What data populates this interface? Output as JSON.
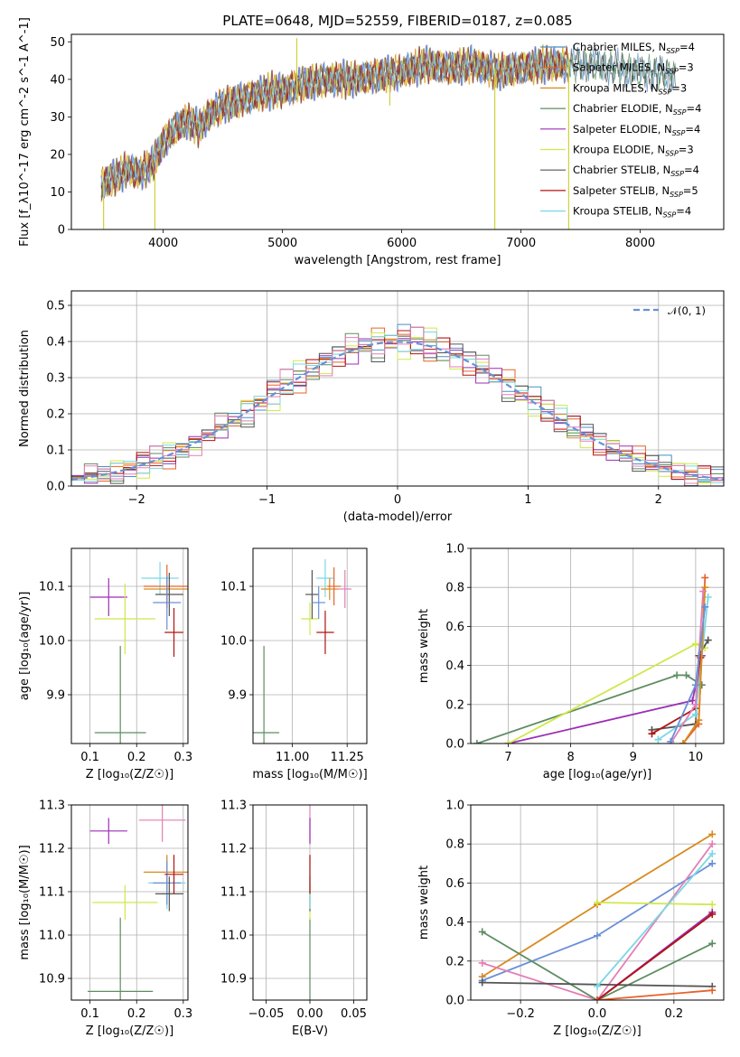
{
  "figure": {
    "title": "PLATE=0648, MJD=52559, FIBERID=0187, z=0.085"
  },
  "colors": {
    "Chabrier MILES": "#4a8fc4",
    "Salpeter MILES": "#e6632a",
    "Kroupa MILES": "#d98a1e",
    "Chabrier ELODIE": "#5e8d62",
    "Salpeter ELODIE": "#9b2fb5",
    "Kroupa ELODIE": "#d0e84a",
    "Chabrier STELIB": "#555555",
    "Salpeter STELIB": "#b0140f",
    "Kroupa STELIB": "#7ad8e6",
    "pink": "#e47fb5",
    "blue": "#6a8fd8",
    "normal": "#6a8fd8"
  },
  "chart_data": [
    {
      "id": "spectrum",
      "type": "line",
      "xlabel": "wavelength [Angstrom, rest frame]",
      "ylabel": "Flux [f_λ10^-17 erg cm^-2 s^-1 A^-1]",
      "xlim": [
        3230,
        8700
      ],
      "ylim": [
        0,
        52
      ],
      "xticks": [
        4000,
        5000,
        6000,
        7000,
        8000
      ],
      "yticks": [
        0,
        10,
        20,
        30,
        40,
        50
      ],
      "grid": false,
      "legend_position": "right",
      "legend": [
        {
          "name": "Chabrier MILES",
          "nssp": "4"
        },
        {
          "name": "Salpeter MILES",
          "nssp": "3"
        },
        {
          "name": "Kroupa MILES",
          "nssp": "3"
        },
        {
          "name": "Chabrier ELODIE",
          "nssp": "4"
        },
        {
          "name": "Salpeter ELODIE",
          "nssp": "4"
        },
        {
          "name": "Kroupa ELODIE",
          "nssp": "3"
        },
        {
          "name": "Chabrier STELIB",
          "nssp": "4"
        },
        {
          "name": "Salpeter STELIB",
          "nssp": "5"
        },
        {
          "name": "Kroupa STELIB",
          "nssp": "4"
        }
      ],
      "continuum": {
        "x": [
          3480,
          3600,
          3700,
          3800,
          3900,
          4000,
          4100,
          4200,
          4300,
          4400,
          4500,
          4600,
          4700,
          4800,
          4900,
          5000,
          5200,
          5400,
          5600,
          5800,
          6000,
          6200,
          6400,
          6600,
          6800,
          7000,
          7200,
          7400,
          7600,
          7800,
          8000,
          8300
        ],
        "y": [
          12,
          14,
          16,
          15,
          17,
          23,
          27,
          29,
          27,
          31,
          33,
          34,
          35,
          36,
          37,
          37,
          39,
          40,
          40,
          41,
          42,
          44,
          43,
          44,
          42,
          43,
          44,
          44,
          44,
          43,
          42,
          41
        ]
      },
      "spikes": [
        {
          "x": 3500,
          "ybottom": 0,
          "ytop": 13
        },
        {
          "x": 3930,
          "ybottom": 0,
          "ytop": 15
        },
        {
          "x": 5120,
          "ybottom": 35,
          "ytop": 51
        },
        {
          "x": 5900,
          "ybottom": 33,
          "ytop": 40
        },
        {
          "x": 6780,
          "ybottom": 0,
          "ytop": 43
        },
        {
          "x": 7400,
          "ybottom": 0,
          "ytop": 46
        }
      ]
    },
    {
      "id": "residuals",
      "type": "histogram",
      "xlabel": "(data-model)/error",
      "ylabel": "Normed distribution",
      "xlim": [
        -2.5,
        2.5
      ],
      "ylim": [
        0,
        0.54
      ],
      "xticks": [
        -2,
        -1,
        0,
        1,
        2
      ],
      "xticklabels": [
        "−2",
        "−1",
        "0",
        "1",
        "2"
      ],
      "yticks": [
        0.0,
        0.1,
        0.2,
        0.3,
        0.4,
        0.5
      ],
      "yticklabels": [
        "0.0",
        "0.1",
        "0.2",
        "0.3",
        "0.4",
        "0.5"
      ],
      "grid": true,
      "legend_position": "top-right",
      "legend_label": "𝒩(0, 1)",
      "bin_width": 0.1,
      "bin_start": -2.5,
      "base_series": "normal approximation",
      "series_colors": [
        "Chabrier MILES",
        "Salpeter MILES",
        "Kroupa MILES",
        "Chabrier ELODIE",
        "Salpeter ELODIE",
        "Kroupa ELODIE",
        "Chabrier STELIB",
        "Salpeter STELIB",
        "Kroupa STELIB",
        "pink"
      ],
      "perturbation": [
        [
          0.01,
          -0.02,
          0.03,
          0.0,
          -0.01,
          0.02,
          0.01,
          -0.03,
          0.02,
          0.0
        ],
        [
          -0.02,
          0.01,
          0.0,
          0.03,
          -0.02,
          0.01,
          -0.01,
          0.02,
          0.0,
          0.02
        ],
        [
          0.02,
          0.0,
          -0.02,
          0.01,
          0.03,
          -0.02,
          0.0,
          0.01,
          -0.03,
          0.01
        ],
        [
          0.0,
          0.03,
          0.01,
          -0.02,
          0.0,
          0.02,
          -0.03,
          0.0,
          0.01,
          -0.01
        ],
        [
          -0.01,
          -0.01,
          0.02,
          0.02,
          -0.03,
          0.0,
          0.02,
          -0.02,
          0.03,
          0.0
        ],
        [
          0.03,
          0.02,
          -0.01,
          -0.01,
          0.01,
          -0.03,
          0.0,
          0.03,
          -0.01,
          -0.02
        ],
        [
          -0.03,
          0.0,
          0.01,
          0.0,
          0.02,
          0.01,
          0.03,
          -0.01,
          -0.02,
          0.03
        ],
        [
          0.01,
          -0.03,
          0.0,
          0.02,
          -0.01,
          0.03,
          -0.02,
          0.0,
          0.02,
          -0.01
        ],
        [
          0.0,
          0.01,
          -0.03,
          -0.01,
          0.02,
          -0.01,
          0.01,
          0.02,
          0.0,
          0.02
        ],
        [
          0.02,
          -0.01,
          0.02,
          0.0,
          0.0,
          -0.02,
          0.03,
          -0.01,
          0.01,
          -0.03
        ]
      ]
    },
    {
      "id": "age_vs_Z",
      "type": "scatter-errorbar",
      "xlabel": "Z [log₁₀(Z/Z☉)]",
      "ylabel": "age  [log₁₀(age/yr)]",
      "xlim": [
        0.06,
        0.31
      ],
      "ylim": [
        9.81,
        10.17
      ],
      "xticks": [
        0.1,
        0.2,
        0.3
      ],
      "xticklabels": [
        "0.1",
        "0.2",
        "0.3"
      ],
      "yticks": [
        9.9,
        10.0,
        10.1
      ],
      "yticklabels": [
        "9.9",
        "10.0",
        "10.1"
      ],
      "grid": true,
      "points": [
        {
          "c": "Chabrier ELODIE",
          "x": 0.165,
          "xerr": 0.055,
          "y": 9.83,
          "yerr": 0.16
        },
        {
          "c": "Salpeter ELODIE",
          "x": 0.14,
          "xerr": 0.04,
          "y": 10.08,
          "yerr": 0.035
        },
        {
          "c": "Kroupa ELODIE",
          "x": 0.175,
          "xerr": 0.065,
          "y": 10.04,
          "yerr": 0.065
        },
        {
          "c": "Kroupa STELIB",
          "x": 0.25,
          "xerr": 0.04,
          "y": 10.115,
          "yerr": 0.03
        },
        {
          "c": "Salpeter MILES",
          "x": 0.265,
          "xerr": 0.05,
          "y": 10.1,
          "yerr": 0.04
        },
        {
          "c": "Kroupa MILES",
          "x": 0.265,
          "xerr": 0.05,
          "y": 10.095,
          "yerr": 0.02
        },
        {
          "c": "Chabrier STELIB",
          "x": 0.27,
          "xerr": 0.03,
          "y": 10.085,
          "yerr": 0.04
        },
        {
          "c": "blue",
          "x": 0.265,
          "xerr": 0.03,
          "y": 10.07,
          "yerr": 0.05
        },
        {
          "c": "Salpeter STELIB",
          "x": 0.28,
          "xerr": 0.02,
          "y": 10.015,
          "yerr": 0.045
        }
      ]
    },
    {
      "id": "age_vs_mass",
      "type": "scatter-errorbar",
      "xlabel": "mass [log₁₀(M/M☉)]",
      "ylabel": "",
      "xlim": [
        10.82,
        11.34
      ],
      "ylim": [
        9.81,
        10.17
      ],
      "xticks": [
        11.0,
        11.25
      ],
      "xticklabels": [
        "11.00",
        "11.25"
      ],
      "yticks": [
        9.9,
        10.0,
        10.1
      ],
      "yticklabels": [
        "9.9",
        "10.0",
        "10.1"
      ],
      "grid": true,
      "points": [
        {
          "c": "Chabrier ELODIE",
          "x": 10.87,
          "xerr": 0.07,
          "y": 9.83,
          "yerr": 0.16
        },
        {
          "c": "Kroupa ELODIE",
          "x": 11.08,
          "xerr": 0.04,
          "y": 10.04,
          "yerr": 0.03
        },
        {
          "c": "Salpeter STELIB",
          "x": 11.15,
          "xerr": 0.04,
          "y": 10.015,
          "yerr": 0.04
        },
        {
          "c": "Chabrier STELIB",
          "x": 11.09,
          "xerr": 0.03,
          "y": 10.085,
          "yerr": 0.045
        },
        {
          "c": "blue",
          "x": 11.12,
          "xerr": 0.03,
          "y": 10.07,
          "yerr": 0.03
        },
        {
          "c": "Kroupa STELIB",
          "x": 11.15,
          "xerr": 0.04,
          "y": 10.115,
          "yerr": 0.035
        },
        {
          "c": "Kroupa MILES",
          "x": 11.17,
          "xerr": 0.04,
          "y": 10.095,
          "yerr": 0.02
        },
        {
          "c": "Salpeter MILES",
          "x": 11.19,
          "xerr": 0.03,
          "y": 10.1,
          "yerr": 0.035
        },
        {
          "c": "pink",
          "x": 11.24,
          "xerr": 0.03,
          "y": 10.095,
          "yerr": 0.035
        }
      ]
    },
    {
      "id": "massweight_vs_age",
      "type": "line",
      "xlabel": "age  [log₁₀(age/yr)]",
      "ylabel": "mass weight",
      "xlim": [
        6.4,
        10.45
      ],
      "ylim": [
        0,
        1.0
      ],
      "xticks": [
        7,
        8,
        9,
        10
      ],
      "xticklabels": [
        "7",
        "8",
        "9",
        "10"
      ],
      "yticks": [
        0.0,
        0.2,
        0.4,
        0.6,
        0.8,
        1.0
      ],
      "yticklabels": [
        "0.0",
        "0.2",
        "0.4",
        "0.6",
        "0.8",
        "1.0"
      ],
      "grid": true,
      "series": [
        {
          "c": "Chabrier ELODIE",
          "x": [
            6.5,
            9.7,
            9.85,
            10.1
          ],
          "y": [
            0.0,
            0.35,
            0.35,
            0.3
          ]
        },
        {
          "c": "Salpeter ELODIE",
          "x": [
            7.0,
            9.95,
            10.1
          ],
          "y": [
            0.0,
            0.22,
            0.45
          ]
        },
        {
          "c": "Kroupa ELODIE",
          "x": [
            7.0,
            10.0,
            10.15
          ],
          "y": [
            0.0,
            0.51,
            0.49
          ]
        },
        {
          "c": "Chabrier STELIB",
          "x": [
            9.3,
            10.0,
            10.05,
            10.2
          ],
          "y": [
            0.07,
            0.1,
            0.45,
            0.53
          ]
        },
        {
          "c": "Salpeter STELIB",
          "x": [
            9.3,
            10.0,
            10.08
          ],
          "y": [
            0.05,
            0.18,
            0.44
          ]
        },
        {
          "c": "Kroupa STELIB",
          "x": [
            9.4,
            10.0,
            10.2
          ],
          "y": [
            0.02,
            0.15,
            0.75
          ]
        },
        {
          "c": "Salpeter MILES",
          "x": [
            9.8,
            10.05,
            10.15
          ],
          "y": [
            0.0,
            0.1,
            0.85
          ]
        },
        {
          "c": "Kroupa MILES",
          "x": [
            9.8,
            10.05,
            10.15
          ],
          "y": [
            0.0,
            0.12,
            0.8
          ]
        },
        {
          "c": "pink",
          "x": [
            9.6,
            10.0,
            10.12
          ],
          "y": [
            0.0,
            0.2,
            0.78
          ]
        },
        {
          "c": "blue",
          "x": [
            9.6,
            10.0,
            10.15
          ],
          "y": [
            0.01,
            0.3,
            0.7
          ]
        }
      ]
    },
    {
      "id": "mass_vs_Z",
      "type": "scatter-errorbar",
      "xlabel": "Z [log₁₀(Z/Z☉)]",
      "ylabel": "mass [log₁₀(M/M☉)]",
      "xlim": [
        0.06,
        0.31
      ],
      "ylim": [
        10.85,
        11.3
      ],
      "xticks": [
        0.1,
        0.2,
        0.3
      ],
      "xticklabels": [
        "0.1",
        "0.2",
        "0.3"
      ],
      "yticks": [
        10.9,
        11.0,
        11.1,
        11.2,
        11.3
      ],
      "yticklabels": [
        "10.9",
        "11.0",
        "11.1",
        "11.2",
        "11.3"
      ],
      "grid": true,
      "points": [
        {
          "c": "Chabrier ELODIE",
          "x": 0.165,
          "xerr": 0.07,
          "y": 10.87,
          "yerr": 0.17
        },
        {
          "c": "Kroupa ELODIE",
          "x": 0.175,
          "xerr": 0.07,
          "y": 11.075,
          "yerr": 0.04
        },
        {
          "c": "Salpeter ELODIE",
          "x": 0.14,
          "xerr": 0.04,
          "y": 11.24,
          "yerr": 0.03
        },
        {
          "c": "pink",
          "x": 0.255,
          "xerr": 0.05,
          "y": 11.265,
          "yerr": 0.05
        },
        {
          "c": "Kroupa STELIB",
          "x": 0.265,
          "xerr": 0.04,
          "y": 11.12,
          "yerr": 0.06
        },
        {
          "c": "Kroupa MILES",
          "x": 0.265,
          "xerr": 0.05,
          "y": 11.145,
          "yerr": 0.04
        },
        {
          "c": "blue",
          "x": 0.265,
          "xerr": 0.03,
          "y": 11.12,
          "yerr": 0.05
        },
        {
          "c": "Chabrier STELIB",
          "x": 0.27,
          "xerr": 0.03,
          "y": 11.095,
          "yerr": 0.04
        },
        {
          "c": "Salpeter STELIB",
          "x": 0.28,
          "xerr": 0.02,
          "y": 11.14,
          "yerr": 0.045
        }
      ]
    },
    {
      "id": "mass_vs_ebv",
      "type": "scatter-errorbar",
      "xlabel": "E(B-V)",
      "ylabel": "",
      "xlim": [
        -0.065,
        0.065
      ],
      "ylim": [
        10.85,
        11.3
      ],
      "xticks": [
        -0.05,
        0.0,
        0.05
      ],
      "xticklabels": [
        "−0.05",
        "0.00",
        "0.05"
      ],
      "yticks": [
        10.9,
        11.0,
        11.1,
        11.2,
        11.3
      ],
      "yticklabels": [
        "10.9",
        "11.0",
        "11.1",
        "11.2",
        "11.3"
      ],
      "grid": true,
      "points": [
        {
          "c": "Chabrier ELODIE",
          "x": 0.0,
          "xerr": 0.0,
          "y": 10.87,
          "yerr": 0.17
        },
        {
          "c": "Kroupa ELODIE",
          "x": 0.0,
          "xerr": 0.0,
          "y": 11.075,
          "yerr": 0.04
        },
        {
          "c": "Chabrier STELIB",
          "x": 0.0,
          "xerr": 0.0,
          "y": 11.095,
          "yerr": 0.04
        },
        {
          "c": "Kroupa STELIB",
          "x": 0.0,
          "xerr": 0.0,
          "y": 11.12,
          "yerr": 0.06
        },
        {
          "c": "pink",
          "x": 0.0,
          "xerr": 0.0,
          "y": 11.265,
          "yerr": 0.05
        },
        {
          "c": "Salpeter STELIB",
          "x": 0.0,
          "xerr": 0.0,
          "y": 11.14,
          "yerr": 0.045
        },
        {
          "c": "Salpeter ELODIE",
          "x": 0.0,
          "xerr": 0.0,
          "y": 11.24,
          "yerr": 0.03
        }
      ]
    },
    {
      "id": "massweight_vs_Z",
      "type": "line",
      "xlabel": "Z [log₁₀(Z/Z☉)]",
      "ylabel": "mass weight",
      "xlim": [
        -0.33,
        0.33
      ],
      "ylim": [
        0,
        1.0
      ],
      "xticks": [
        -0.2,
        0.0,
        0.2
      ],
      "xticklabels": [
        "−0.2",
        "0.0",
        "0.2"
      ],
      "yticks": [
        0.0,
        0.2,
        0.4,
        0.6,
        0.8,
        1.0
      ],
      "yticklabels": [
        "0.0",
        "0.2",
        "0.4",
        "0.6",
        "0.8",
        "1.0"
      ],
      "grid": true,
      "series": [
        {
          "c": "Kroupa MILES",
          "x": [
            -0.3,
            0.0,
            0.3
          ],
          "y": [
            0.12,
            0.49,
            0.85
          ]
        },
        {
          "c": "blue",
          "x": [
            -0.3,
            0.0,
            0.3
          ],
          "y": [
            0.1,
            0.33,
            0.7
          ]
        },
        {
          "c": "pink",
          "x": [
            -0.3,
            0.0,
            0.3
          ],
          "y": [
            0.19,
            0.0,
            0.8
          ]
        },
        {
          "c": "Chabrier ELODIE",
          "x": [
            -0.3,
            0.0,
            0.3
          ],
          "y": [
            0.35,
            0.0,
            0.29
          ]
        },
        {
          "c": "Chabrier STELIB",
          "x": [
            -0.3,
            0.3
          ],
          "y": [
            0.09,
            0.07
          ]
        },
        {
          "c": "Kroupa ELODIE",
          "x": [
            0.0,
            0.3
          ],
          "y": [
            0.5,
            0.49
          ]
        },
        {
          "c": "Kroupa STELIB",
          "x": [
            0.0,
            0.3
          ],
          "y": [
            0.07,
            0.75
          ]
        },
        {
          "c": "Salpeter ELODIE",
          "x": [
            0.0,
            0.3
          ],
          "y": [
            0.0,
            0.45
          ]
        },
        {
          "c": "Salpeter STELIB",
          "x": [
            0.0,
            0.3
          ],
          "y": [
            0.0,
            0.44
          ]
        },
        {
          "c": "Salpeter MILES",
          "x": [
            0.0,
            0.3
          ],
          "y": [
            0.0,
            0.05
          ]
        }
      ]
    }
  ]
}
